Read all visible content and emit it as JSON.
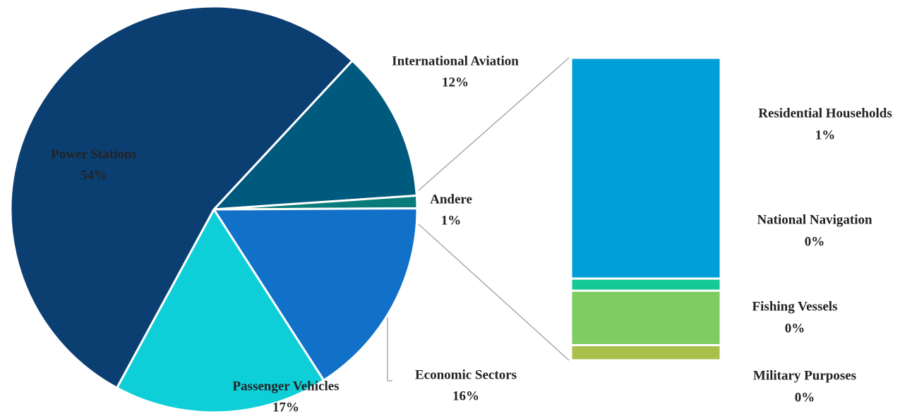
{
  "chart_data": {
    "type": "pie-of-bar",
    "categories": [
      "International Aviation",
      "Andere",
      "Economic Sectors",
      "Passenger Vehicles",
      "Power Stations"
    ],
    "values": [
      12,
      1,
      16,
      17,
      54
    ],
    "value_labels": [
      "12%",
      "1%",
      "16%",
      "17%",
      "54%"
    ],
    "colors": [
      "#005a7e",
      "#0a7b7b",
      "#1170c8",
      "#0ecfd8",
      "#0b3f72"
    ],
    "breakdown": {
      "categories": [
        "Residential Households",
        "National Navigation",
        "Fishing Vessels",
        "Military Purposes"
      ],
      "values": [
        0.73,
        0.04,
        0.18,
        0.05
      ],
      "value_labels": [
        "1%",
        "0%",
        "0%",
        "0%"
      ],
      "colors": [
        "#009fd9",
        "#15c997",
        "#7fcc60",
        "#a8c04a"
      ]
    }
  }
}
